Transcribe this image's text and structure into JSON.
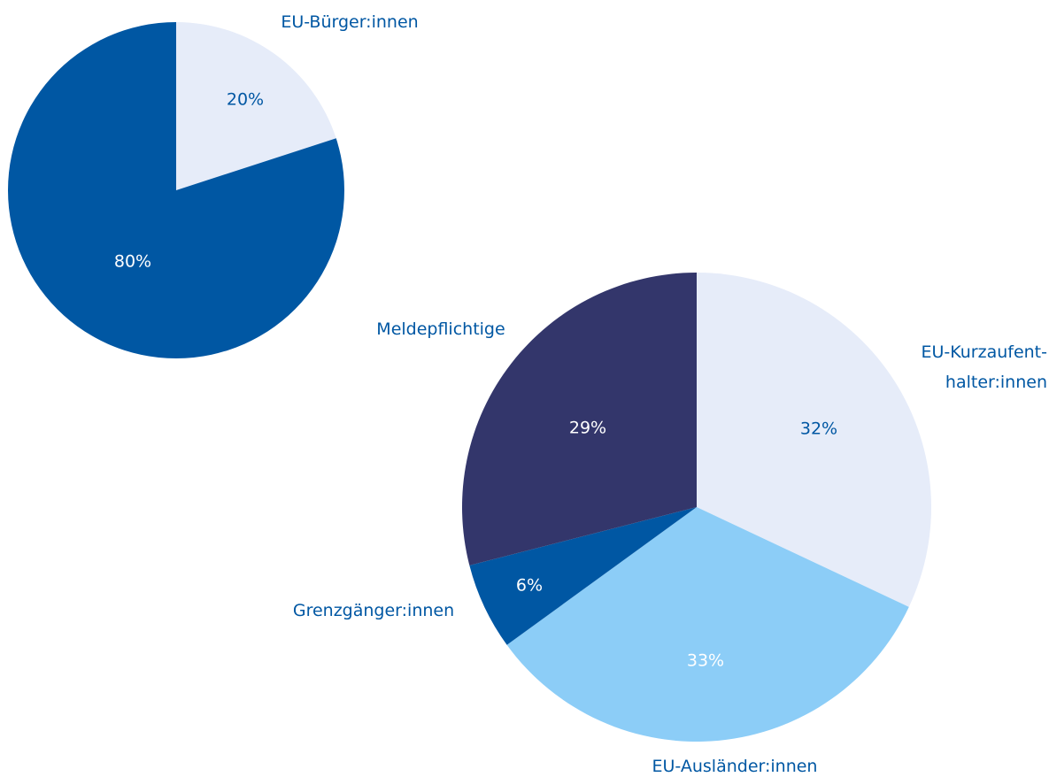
{
  "chart_data": [
    {
      "type": "pie",
      "categories": [
        "EU-Bürger:innen",
        null
      ],
      "values": [
        20,
        80
      ],
      "value_labels": [
        "20%",
        "80%"
      ],
      "colors": [
        "#e6ecf9",
        "#0057a3"
      ],
      "label_colors": [
        "#0057a3",
        "#ffffff"
      ]
    },
    {
      "type": "pie",
      "categories": [
        "EU-Kurzaufent-\nhalter:innen",
        "EU-Ausländer:innen",
        "Grenzgänger:innen",
        "Meldepflichtige"
      ],
      "values": [
        32,
        33,
        6,
        29
      ],
      "value_labels": [
        "32%",
        "33%",
        "6%",
        "29%"
      ],
      "colors": [
        "#e6ecf9",
        "#8ccdf7",
        "#0057a3",
        "#33366b"
      ],
      "label_colors": [
        "#0057a3",
        "#ffffff",
        "#ffffff",
        "#ffffff"
      ]
    }
  ]
}
